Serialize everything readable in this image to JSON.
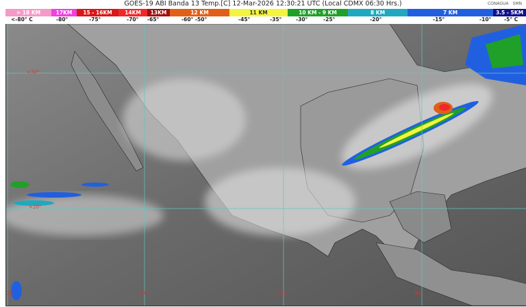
{
  "header": {
    "title": "GOES-19 ABI Banda 13 Temp.[C] 12-Mar-2026 12:30:21 UTC (Local CDMX  06:30 Hrs.)",
    "logos": [
      "CONAGUA",
      "SMN"
    ]
  },
  "legend": {
    "segments": [
      {
        "label": "> 18 KM",
        "color": "#f49ac8"
      },
      {
        "label": "17KM",
        "color": "#f040e0"
      },
      {
        "label": "15 - 16KM",
        "color": "#d81818"
      },
      {
        "label": "14KM",
        "color": "#f02828"
      },
      {
        "label": "13KM",
        "color": "#a01010"
      },
      {
        "label": "12 KM",
        "color": "#e0601a"
      },
      {
        "label": "11 KM",
        "color": "#f4f440"
      },
      {
        "label": "10 KM -  9 KM",
        "color": "#20a028"
      },
      {
        "label": "8 KM",
        "color": "#20a8c0"
      },
      {
        "label": "7 KM",
        "color": "#2060e0"
      },
      {
        "label": "3.5 - 5KM",
        "color": "#10108a"
      }
    ],
    "temps": [
      "<-80° C",
      "-80°",
      "-75°",
      "-70°",
      "-65°",
      "-60°  -50°",
      "-45°",
      "-35°",
      "-30°",
      "-25°",
      "-20°",
      "-15°",
      "-10°",
      "-5°  C"
    ]
  },
  "map": {
    "lat_labels": [
      "+30°",
      "+20°"
    ],
    "lon_labels": [
      "-120",
      "-110",
      "-100",
      "-90"
    ]
  }
}
